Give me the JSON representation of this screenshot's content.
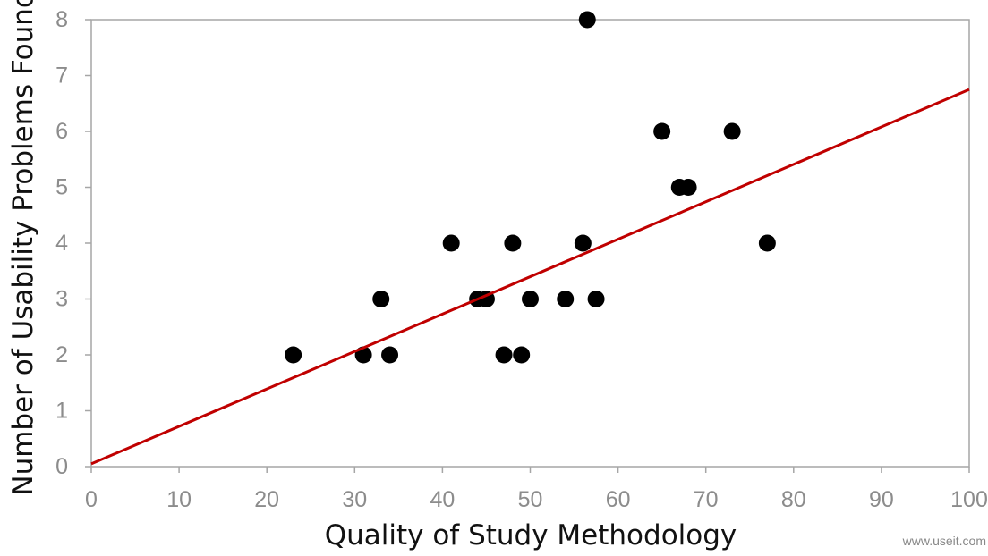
{
  "chart_data": {
    "type": "scatter",
    "title": "",
    "xlabel": "Quality of Study Methodology",
    "ylabel": "Number of Usability Problems Found",
    "xlim": [
      0,
      100
    ],
    "ylim": [
      0,
      8
    ],
    "x_ticks": [
      "0",
      "10",
      "20",
      "30",
      "40",
      "50",
      "60",
      "70",
      "80",
      "90",
      "100"
    ],
    "y_ticks": [
      "0",
      "1",
      "2",
      "3",
      "4",
      "5",
      "6",
      "7",
      "8"
    ],
    "grid": false,
    "legend": "none",
    "series": [
      {
        "points": [
          {
            "x": 23,
            "y": 2
          },
          {
            "x": 31,
            "y": 2
          },
          {
            "x": 33,
            "y": 3
          },
          {
            "x": 34,
            "y": 2
          },
          {
            "x": 41,
            "y": 4
          },
          {
            "x": 44,
            "y": 3
          },
          {
            "x": 45,
            "y": 3
          },
          {
            "x": 47,
            "y": 2
          },
          {
            "x": 48,
            "y": 4
          },
          {
            "x": 49,
            "y": 2
          },
          {
            "x": 50,
            "y": 3
          },
          {
            "x": 54,
            "y": 3
          },
          {
            "x": 56,
            "y": 4
          },
          {
            "x": 56.5,
            "y": 8
          },
          {
            "x": 57.5,
            "y": 3
          },
          {
            "x": 65,
            "y": 6
          },
          {
            "x": 67,
            "y": 5
          },
          {
            "x": 68,
            "y": 5
          },
          {
            "x": 73,
            "y": 6
          },
          {
            "x": 77,
            "y": 4
          }
        ],
        "color": "#000000"
      }
    ],
    "trendline": {
      "start": {
        "x": 0,
        "y": 0.05
      },
      "end": {
        "x": 100,
        "y": 6.75
      },
      "color": "#c00000"
    },
    "axis_color": "#a6a6a6"
  },
  "watermark": "www.useit.com"
}
